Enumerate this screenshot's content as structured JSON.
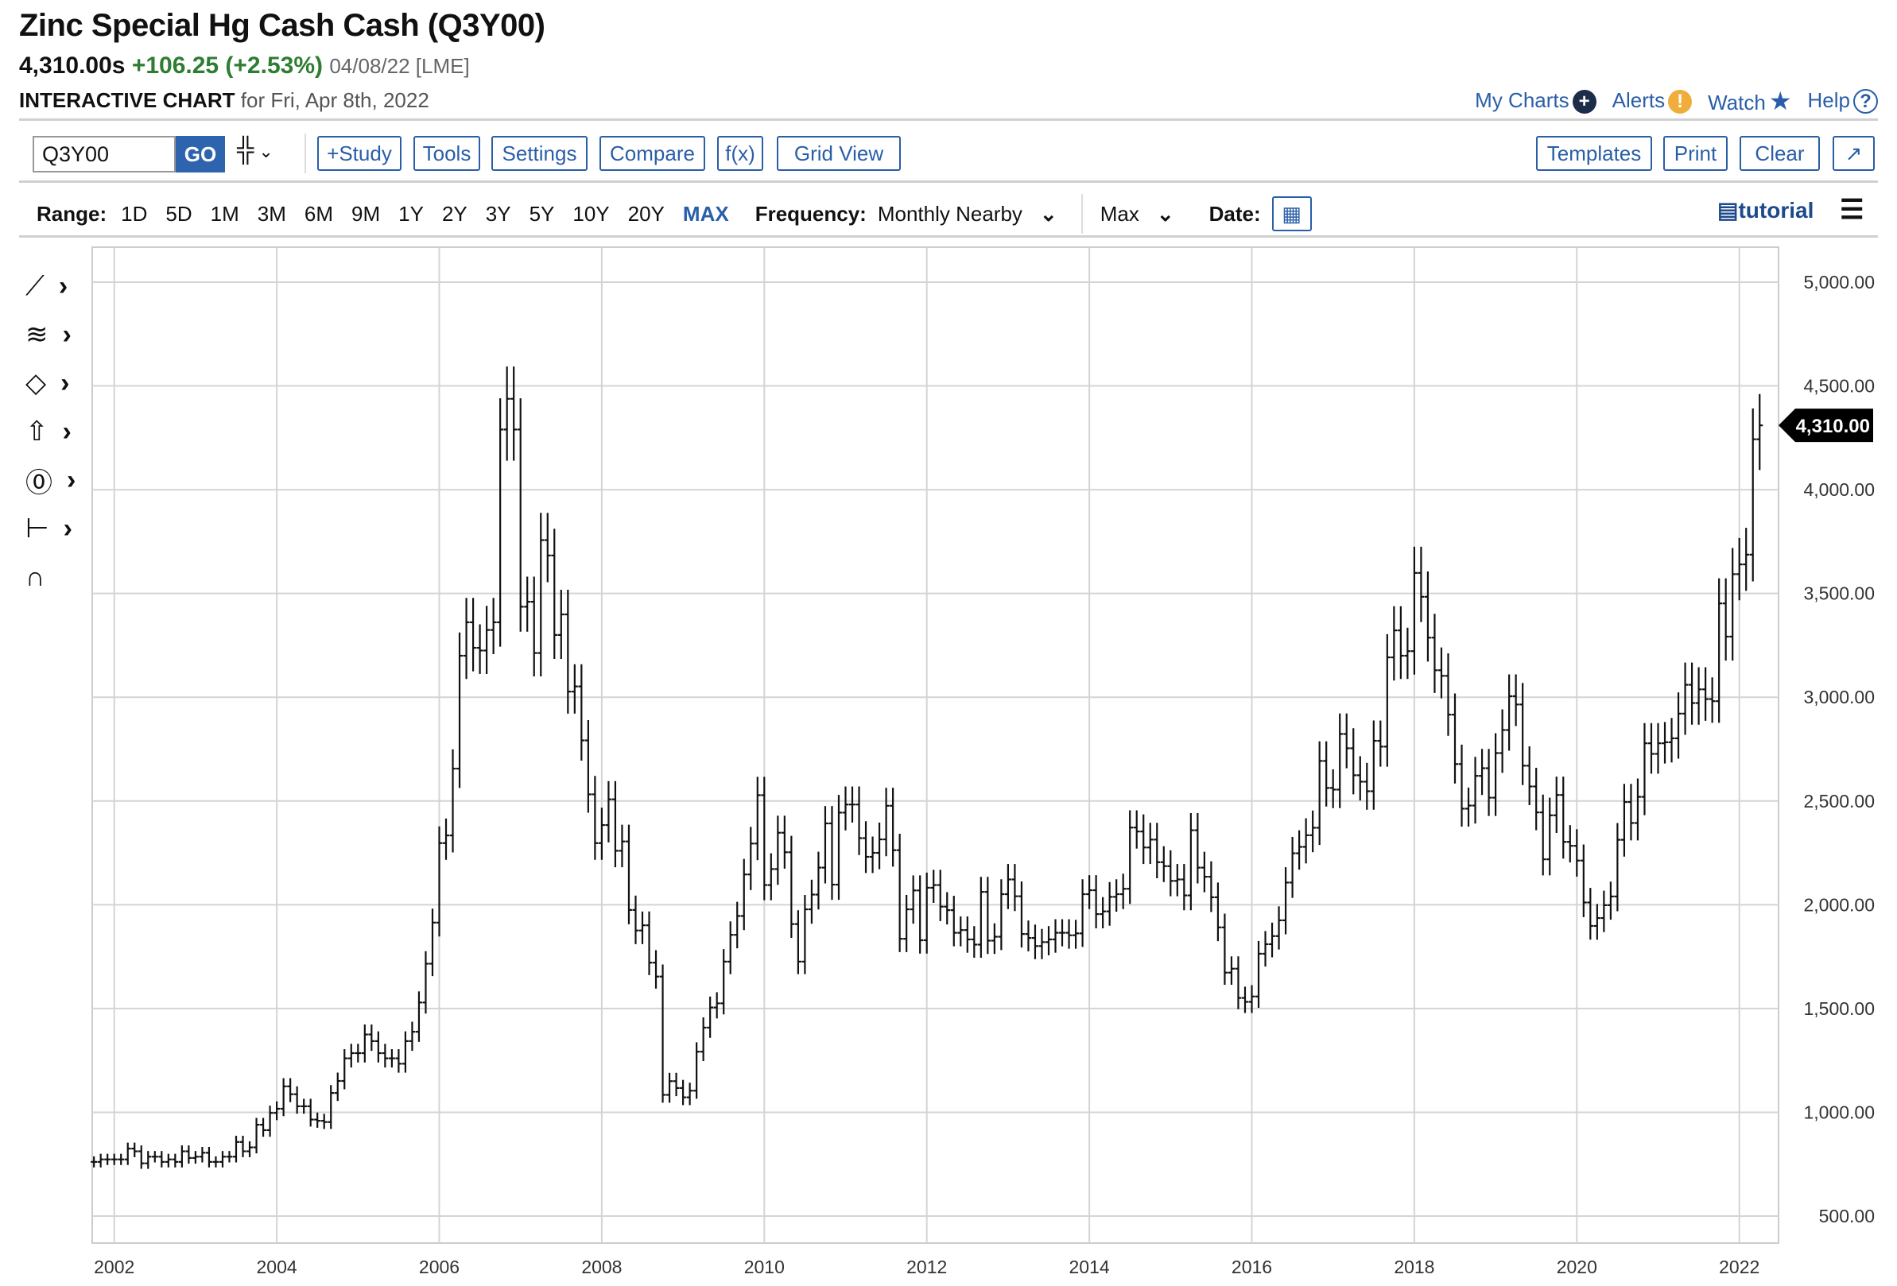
{
  "header": {
    "title": "Zinc Special Hg Cash Cash (Q3Y00)",
    "last": "4,310.00s",
    "change": "+106.25 (+2.53%)",
    "date": "04/08/22 [LME]",
    "interactive": "INTERACTIVE CHART",
    "for_date": "for Fri, Apr 8th, 2022",
    "links": [
      {
        "label": "My Charts",
        "icon": "plus-circle-icon"
      },
      {
        "label": "Alerts",
        "icon": "exclamation-circle-icon"
      },
      {
        "label": "Watch",
        "icon": "star-icon"
      },
      {
        "label": "Help",
        "icon": "question-circle-icon"
      }
    ]
  },
  "toolbar": {
    "symbol": "Q3Y00",
    "go": "GO",
    "bar_type_icon": "ohlc-bars-icon",
    "buttons": [
      "+Study",
      "Tools",
      "Settings",
      "Compare",
      "f(x)",
      "Grid View"
    ],
    "right_buttons": [
      "Templates",
      "Print",
      "Clear",
      "↗"
    ]
  },
  "range_bar": {
    "range_label": "Range:",
    "ranges": [
      "1D",
      "5D",
      "1M",
      "3M",
      "6M",
      "9M",
      "1Y",
      "2Y",
      "3Y",
      "5Y",
      "10Y",
      "20Y",
      "MAX"
    ],
    "selected": "MAX",
    "frequency_label": "Frequency:",
    "frequency": "Monthly Nearby",
    "period": "Max",
    "date_label": "Date:",
    "tutorial": "tutorial"
  },
  "colors": {
    "accent": "#2a5ea8",
    "go": "#2e64ad",
    "up": "#2e7d32",
    "alert": "#f0ad3c",
    "dark": "#1c2d4a"
  },
  "side_tools": [
    "trendline-icon",
    "fibonacci-icon",
    "shape-icon",
    "arrow-icon",
    "text-marker-icon",
    "measure-icon",
    "magnet-icon"
  ],
  "chart_data": {
    "type": "ohlc",
    "frequency": "monthly",
    "x_start": "2001-10",
    "x_end": "2022-04",
    "ylim": [
      370,
      5170
    ],
    "grid": true,
    "y_ticks": [
      "5,000.00",
      "4,500.00",
      "4,000.00",
      "3,500.00",
      "3,000.00",
      "2,500.00",
      "2,000.00",
      "1,500.00",
      "1,000.00",
      "500.00"
    ],
    "y_tick_values": [
      5000,
      4500,
      4000,
      3500,
      3000,
      2500,
      2000,
      1500,
      1000,
      500
    ],
    "x_ticks": [
      "2002",
      "2004",
      "2006",
      "2008",
      "2010",
      "2012",
      "2014",
      "2016",
      "2018",
      "2020",
      "2022"
    ],
    "last_price_label": "4,310.00",
    "close": [
      761,
      773,
      773,
      773,
      773,
      825,
      812,
      754,
      786,
      786,
      761,
      773,
      761,
      812,
      780,
      786,
      805,
      761,
      761,
      786,
      786,
      857,
      812,
      831,
      940,
      914,
      997,
      1017,
      1125,
      1087,
      1029,
      1029,
      965,
      959,
      953,
      1093,
      1151,
      1260,
      1285,
      1285,
      1375,
      1343,
      1285,
      1260,
      1260,
      1234,
      1343,
      1388,
      1529,
      1716,
      1914,
      2297,
      2334,
      2656,
      3200,
      3361,
      3238,
      3225,
      3324,
      3361,
      4290,
      4438,
      4290,
      3436,
      3460,
      3213,
      3757,
      3683,
      3300,
      3399,
      3027,
      3052,
      2792,
      2532,
      2297,
      2384,
      2508,
      2260,
      2305,
      1975,
      1876,
      1901,
      1721,
      1654,
      1084,
      1150,
      1117,
      1072,
      1104,
      1292,
      1408,
      1505,
      1525,
      1726,
      1855,
      1946,
      2146,
      2295,
      2528,
      2095,
      2172,
      2347,
      2253,
      1907,
      1726,
      1978,
      2049,
      2179,
      2392,
      2097,
      2444,
      2483,
      2483,
      2321,
      2231,
      2250,
      2315,
      2477,
      2263,
      1836,
      1978,
      2069,
      1829,
      2082,
      2095,
      1991,
      1974,
      1865,
      1878,
      1833,
      1808,
      2062,
      1827,
      1846,
      2051,
      2122,
      2041,
      1859,
      1840,
      1801,
      1820,
      1833,
      1865,
      1865,
      1853,
      1862,
      2051,
      2070,
      1955,
      1968,
      2038,
      2051,
      2077,
      2372,
      2353,
      2276,
      2314,
      2205,
      2186,
      2115,
      2122,
      2045,
      2359,
      2179,
      2135,
      2036,
      1891,
      1673,
      1692,
      1551,
      1532,
      1558,
      1764,
      1810,
      1849,
      1925,
      2107,
      2248,
      2279,
      2335,
      2371,
      2693,
      2563,
      2555,
      2823,
      2754,
      2624,
      2593,
      2547,
      2790,
      2762,
      3192,
      3322,
      3200,
      3222,
      3599,
      3484,
      3287,
      3130,
      3103,
      2916,
      2678,
      2463,
      2478,
      2621,
      2658,
      2516,
      2731,
      2842,
      3005,
      2965,
      2670,
      2570,
      2445,
      2219,
      2431,
      2529,
      2303,
      2284,
      2213,
      2011,
      1898,
      1936,
      1998,
      2040,
      2313,
      2495,
      2394,
      2520,
      2778,
      2727,
      2778,
      2783,
      2802,
      2921,
      3060,
      2972,
      3038,
      2991,
      2981,
      3452,
      3292,
      3593,
      3640,
      3687,
      4243,
      4310
    ]
  }
}
